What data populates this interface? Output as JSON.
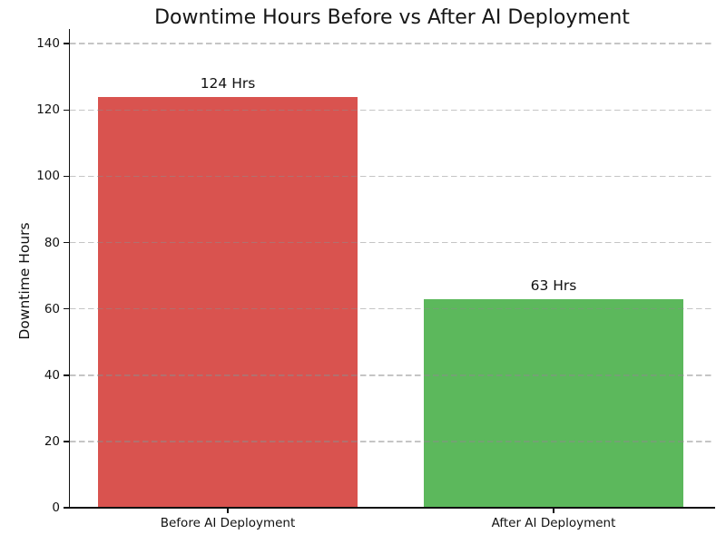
{
  "chart_data": {
    "type": "bar",
    "title": "Downtime Hours Before vs After AI Deployment",
    "ylabel": "Downtime Hours",
    "xlabel": "",
    "categories": [
      "Before AI Deployment",
      "After AI Deployment"
    ],
    "values": [
      124,
      63
    ],
    "value_labels": [
      "124 Hrs",
      "63 Hrs"
    ],
    "bar_colors": [
      "#d9534f",
      "#5cb85c"
    ],
    "yticks": [
      0,
      20,
      40,
      60,
      80,
      100,
      120,
      140
    ],
    "ylim": [
      0,
      144
    ],
    "grid": "horizontal-dashed",
    "gridline_color": "#c9c9c9",
    "legend": "none",
    "background": "#ffffff"
  }
}
